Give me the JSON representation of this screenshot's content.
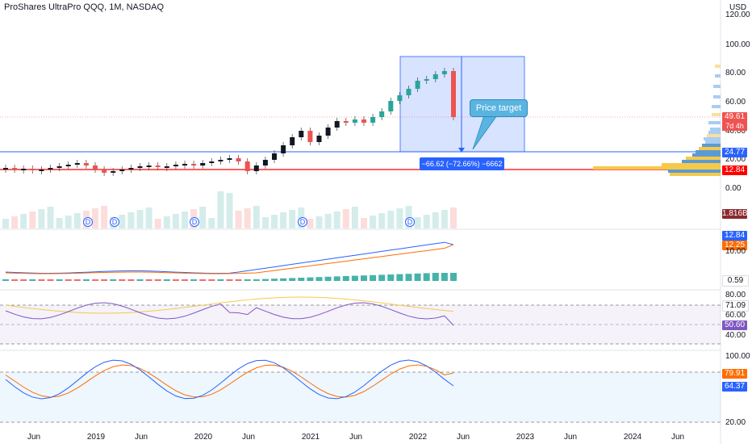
{
  "header": {
    "title": "ProShares UltraPro QQQ, 1M, NASDAQ",
    "currency": "USD"
  },
  "price_axis": [
    "120.00",
    "100.00",
    "80.00",
    "60.00",
    "40.00",
    "20.00",
    "0.00"
  ],
  "price_badges": {
    "last_price": "49.61",
    "countdown": "7d 4h",
    "level_upper": "24.77",
    "level_lower": "12.84",
    "volume": "1.816B"
  },
  "price_colors": {
    "up": "#26a69a",
    "down": "#ef5350",
    "measure": "#2962ff",
    "line_red": "#ff0000"
  },
  "annotations": {
    "price_target": "Price target",
    "measure": "−66.62 (−72.66%) −6662",
    "dividend": "D"
  },
  "macd_panel": {
    "label_top": "12.84",
    "label_mid": "12.25",
    "axis": "10.00",
    "histogram": "0.59"
  },
  "rsi_panel": {
    "axis_80": "80.00",
    "badge_top": "71.09",
    "axis_60": "60.00",
    "badge_value": "50.60",
    "axis_40": "40.00"
  },
  "stoch_panel": {
    "axis_100": "100.00",
    "badge_d": "79.91",
    "badge_k": "64.37",
    "axis_20": "20.00"
  },
  "x_axis": [
    "Jun",
    "2019",
    "Jun",
    "2020",
    "Jun",
    "2021",
    "Jun",
    "2022",
    "Jun",
    "2023",
    "Jun",
    "2024",
    "Jun"
  ]
}
